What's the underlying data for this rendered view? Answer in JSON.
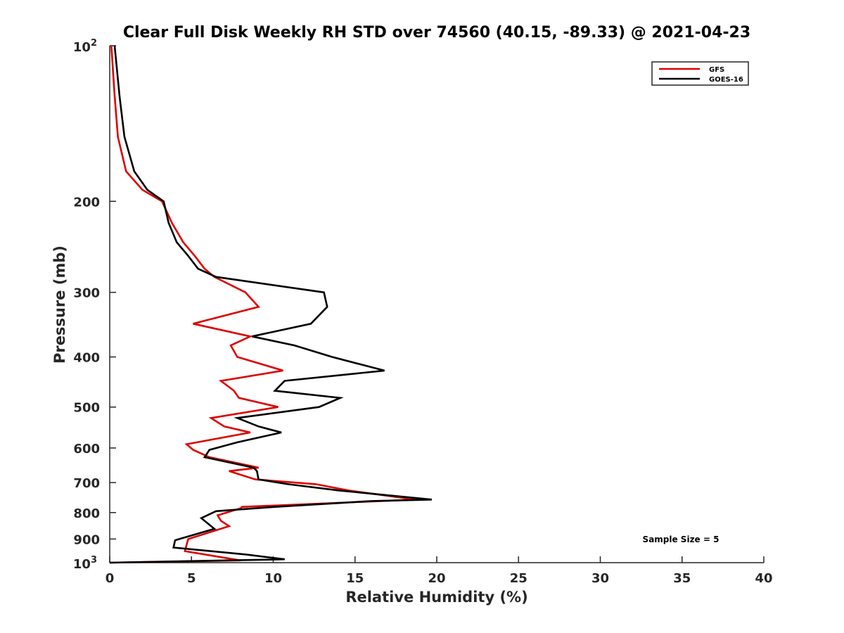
{
  "chart_data": {
    "type": "line",
    "title": "Clear Full Disk Weekly RH STD over 74560 (40.15, -89.33) @ 2021-04-23",
    "xlabel": "Relative Humidity (%)",
    "ylabel": "Pressure (mb)",
    "xlim": [
      0,
      40
    ],
    "ylim": [
      100,
      1000
    ],
    "y_scale": "log",
    "y_reversed": true,
    "x_ticks": [
      0,
      5,
      10,
      15,
      20,
      25,
      30,
      35,
      40
    ],
    "y_ticks": [
      100,
      200,
      300,
      400,
      500,
      600,
      700,
      800,
      900,
      1000
    ],
    "y_tick_labels": {
      "100": {
        "base": "10",
        "exp": "2"
      },
      "200": "200",
      "300": "300",
      "400": "400",
      "500": "500",
      "600": "600",
      "700": "700",
      "800": "800",
      "900": "900",
      "1000": {
        "base": "10",
        "exp": "3"
      }
    },
    "grid": false,
    "legend_position": "top-right",
    "annotation": "Sample Size = 5",
    "series": [
      {
        "name": "GFS",
        "color": "#dd0000",
        "points": [
          [
            0.1,
            100
          ],
          [
            0.3,
            125
          ],
          [
            0.5,
            150
          ],
          [
            1.0,
            175
          ],
          [
            2.0,
            190
          ],
          [
            3.2,
            200
          ],
          [
            3.8,
            220
          ],
          [
            4.5,
            240
          ],
          [
            5.2,
            255
          ],
          [
            5.8,
            270
          ],
          [
            6.4,
            280
          ],
          [
            8.3,
            300
          ],
          [
            9.1,
            320
          ],
          [
            5.1,
            345
          ],
          [
            8.6,
            365
          ],
          [
            7.4,
            380
          ],
          [
            7.8,
            400
          ],
          [
            10.6,
            425
          ],
          [
            6.8,
            445
          ],
          [
            7.6,
            465
          ],
          [
            7.9,
            480
          ],
          [
            10.3,
            500
          ],
          [
            6.2,
            525
          ],
          [
            7.0,
            545
          ],
          [
            8.6,
            560
          ],
          [
            4.7,
            590
          ],
          [
            5.1,
            605
          ],
          [
            6.1,
            625
          ],
          [
            9.1,
            655
          ],
          [
            7.3,
            665
          ],
          [
            8.9,
            690
          ],
          [
            12.6,
            705
          ],
          [
            14.6,
            725
          ],
          [
            18.7,
            755
          ],
          [
            8.1,
            780
          ],
          [
            8.0,
            785
          ],
          [
            6.6,
            810
          ],
          [
            6.8,
            830
          ],
          [
            7.3,
            850
          ],
          [
            4.8,
            900
          ],
          [
            4.6,
            950
          ],
          [
            8.0,
            990
          ],
          [
            0.0,
            1000
          ]
        ]
      },
      {
        "name": "GOES-16",
        "color": "#000000",
        "points": [
          [
            0.3,
            100
          ],
          [
            0.6,
            125
          ],
          [
            0.9,
            150
          ],
          [
            1.5,
            175
          ],
          [
            2.3,
            190
          ],
          [
            3.3,
            200
          ],
          [
            3.6,
            220
          ],
          [
            4.1,
            240
          ],
          [
            4.8,
            255
          ],
          [
            5.4,
            270
          ],
          [
            6.5,
            280
          ],
          [
            13.1,
            300
          ],
          [
            13.3,
            320
          ],
          [
            12.3,
            345
          ],
          [
            8.7,
            365
          ],
          [
            11.3,
            380
          ],
          [
            13.6,
            400
          ],
          [
            16.8,
            425
          ],
          [
            10.7,
            445
          ],
          [
            10.1,
            465
          ],
          [
            14.1,
            480
          ],
          [
            12.8,
            500
          ],
          [
            7.8,
            525
          ],
          [
            9.1,
            545
          ],
          [
            10.5,
            560
          ],
          [
            7.8,
            585
          ],
          [
            6.1,
            605
          ],
          [
            5.8,
            625
          ],
          [
            8.8,
            655
          ],
          [
            9.0,
            665
          ],
          [
            9.1,
            690
          ],
          [
            10.9,
            705
          ],
          [
            14.0,
            725
          ],
          [
            19.7,
            755
          ],
          [
            16.0,
            760
          ],
          [
            10.1,
            780
          ],
          [
            6.5,
            795
          ],
          [
            5.6,
            820
          ],
          [
            6.0,
            840
          ],
          [
            6.4,
            860
          ],
          [
            4.0,
            905
          ],
          [
            3.9,
            935
          ],
          [
            8.4,
            965
          ],
          [
            10.7,
            985
          ],
          [
            0.0,
            1000
          ]
        ]
      }
    ]
  }
}
